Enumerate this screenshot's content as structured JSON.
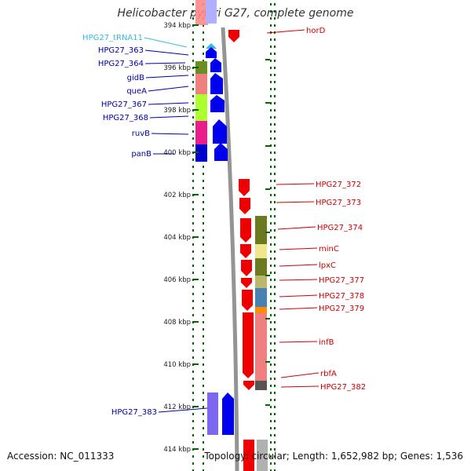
{
  "title": "Helicobacter pylori G27, complete genome",
  "footer": {
    "accession": "Accession: NC_011333",
    "summary": "Topology: circular; Length: 1,652,982 bp; Genes: 1,536"
  },
  "ticks": [
    "394 kbp",
    "396 kbp",
    "398 kbp",
    "400 kbp",
    "402 kbp",
    "404 kbp",
    "406 kbp",
    "408 kbp",
    "410 kbp",
    "412 kbp",
    "414 kbp"
  ],
  "left_genes": [
    {
      "label": "HPG27_tRNA11",
      "color": "#33bbdd"
    },
    {
      "label": "HPG27_363",
      "color": "#0000aa"
    },
    {
      "label": "HPG27_364",
      "color": "#0000aa"
    },
    {
      "label": "gidB",
      "color": "#0000aa"
    },
    {
      "label": "queA",
      "color": "#0000aa"
    },
    {
      "label": "HPG27_367",
      "color": "#0000aa"
    },
    {
      "label": "HPG27_368",
      "color": "#0000aa"
    },
    {
      "label": "ruvB",
      "color": "#0000aa"
    },
    {
      "label": "panB",
      "color": "#0000aa"
    },
    {
      "label": "HPG27_383",
      "color": "#0000aa"
    }
  ],
  "right_genes": [
    {
      "label": "horD",
      "color": "#cc0000"
    },
    {
      "label": "HPG27_372",
      "color": "#cc0000"
    },
    {
      "label": "HPG27_373",
      "color": "#cc0000"
    },
    {
      "label": "HPG27_374",
      "color": "#cc0000"
    },
    {
      "label": "minC",
      "color": "#cc0000"
    },
    {
      "label": "lpxC",
      "color": "#cc0000"
    },
    {
      "label": "HPG27_377",
      "color": "#cc0000"
    },
    {
      "label": "HPG27_378",
      "color": "#cc0000"
    },
    {
      "label": "HPG27_379",
      "color": "#cc0000"
    },
    {
      "label": "infB",
      "color": "#cc0000"
    },
    {
      "label": "rbfA",
      "color": "#cc0000"
    },
    {
      "label": "HPG27_382",
      "color": "#cc0000"
    }
  ],
  "colors": {
    "forward_strand": "#0000ee",
    "reverse_strand": "#ee0000",
    "tick": "#006600",
    "backbone": "#888888",
    "cog_colors": [
      "#6b8e23",
      "#f08080",
      "#adff2f",
      "#ff1493",
      "#0000cd",
      "#f0e68c",
      "#bdb76b",
      "#4682b4",
      "#ff8c00",
      "#555555",
      "#7b68ee"
    ]
  }
}
